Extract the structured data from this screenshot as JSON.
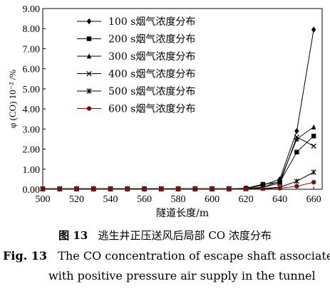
{
  "chart_data": {
    "type": "line",
    "ylabel": "φ (CO) 10⁻² /%",
    "xlabel": "隧道长度/m",
    "xlim": [
      500,
      665
    ],
    "ylim": [
      0,
      9
    ],
    "x_ticks": [
      500,
      520,
      540,
      560,
      580,
      600,
      620,
      640,
      660
    ],
    "y_ticks": [
      "0.00",
      "1.00",
      "2.00",
      "3.00",
      "4.00",
      "5.00",
      "6.00",
      "7.00",
      "8.00",
      "9.00"
    ],
    "x": [
      500,
      510,
      520,
      530,
      540,
      550,
      560,
      570,
      580,
      590,
      600,
      610,
      620,
      630,
      640,
      650,
      660
    ],
    "legend_position": "top-left",
    "series": [
      {
        "name": "100 s烟气浓度分布",
        "marker": "diamond",
        "values": [
          0.02,
          0.02,
          0.02,
          0.02,
          0.02,
          0.02,
          0.02,
          0.02,
          0.02,
          0.02,
          0.02,
          0.02,
          0.05,
          0.2,
          0.5,
          2.9,
          7.95
        ]
      },
      {
        "name": "200 s烟气浓度分布",
        "marker": "square",
        "values": [
          0.02,
          0.02,
          0.02,
          0.02,
          0.02,
          0.02,
          0.02,
          0.02,
          0.02,
          0.02,
          0.02,
          0.02,
          0.05,
          0.25,
          0.35,
          1.85,
          2.65
        ]
      },
      {
        "name": "300 s烟气浓度分布",
        "marker": "triangle",
        "values": [
          0.02,
          0.02,
          0.02,
          0.02,
          0.02,
          0.02,
          0.02,
          0.02,
          0.02,
          0.02,
          0.02,
          0.02,
          0.04,
          0.1,
          0.4,
          2.5,
          3.1
        ]
      },
      {
        "name": "400 s烟气浓度分布",
        "marker": "x",
        "values": [
          0.02,
          0.02,
          0.02,
          0.02,
          0.02,
          0.02,
          0.02,
          0.02,
          0.02,
          0.02,
          0.02,
          0.02,
          0.03,
          0.1,
          0.3,
          2.6,
          2.15
        ]
      },
      {
        "name": "500 s烟气浓度分布",
        "marker": "star",
        "values": [
          0.02,
          0.02,
          0.02,
          0.02,
          0.02,
          0.02,
          0.02,
          0.02,
          0.02,
          0.02,
          0.02,
          0.02,
          0.02,
          0.05,
          0.1,
          0.4,
          0.85
        ]
      },
      {
        "name": "600 s烟气浓度分布",
        "marker": "circle",
        "values": [
          0.02,
          0.02,
          0.02,
          0.02,
          0.02,
          0.02,
          0.02,
          0.02,
          0.02,
          0.02,
          0.02,
          0.02,
          0.02,
          0.03,
          0.05,
          0.15,
          0.35
        ]
      }
    ]
  },
  "caption": {
    "cn_label": "图 13",
    "cn_text": "逃生井正压送风后局部 CO 浓度分布",
    "en_label": "Fig. 13",
    "en_text_1": "The CO concentration of escape shaft associated",
    "en_text_2": "with positive pressure air supply in the tunnel"
  },
  "colors": {
    "series_default": "#000000",
    "series_600": "#7a1010",
    "axis": "#000000"
  }
}
